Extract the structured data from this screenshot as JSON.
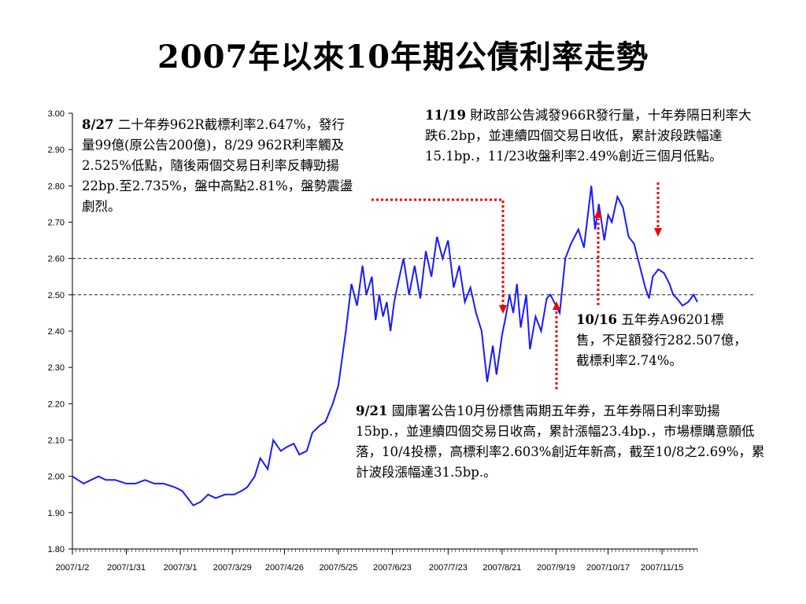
{
  "title": "2007年以來10年期公債利率走勢",
  "colors": {
    "line": "#1a1aff",
    "arrow": "#ee0000",
    "grid": "#000000"
  },
  "annotations": {
    "a827": {
      "date": "8/27",
      "text": " 二十年券962R截標利率2.647%，發行量99億(原公告200億)，8/29 962R利率觸及2.525%低點，隨後兩個交易日利率反轉勁揚22bp.至2.735%，盤中高點2.81%，盤勢震盪劇烈。"
    },
    "a1119": {
      "date": "11/19",
      "text": " 財政部公告減發966R發行量，十年券隔日利率大跌6.2bp，並連續四個交易日收低，累計波段跌幅達15.1bp.，11/23收盤利率2.49%創近三個月低點。"
    },
    "a1016": {
      "date": "10/16",
      "text": " 五年券A96201標售，不足額發行282.507億，截標利率2.74%。"
    },
    "a921": {
      "date": "9/21",
      "text": " 國庫署公告10月份標售兩期五年券，五年券隔日利率勁揚15bp.，並連續四個交易日收高，累計漲幅23.4bp.，市場標購意願低落，10/4投標，高標利率2.603%創近年新高，截至10/8之2.69%，累計波段漲幅達31.5bp.。"
    }
  },
  "chart_data": {
    "type": "line",
    "title": "2007年以來10年期公債利率走勢",
    "xlabel": "",
    "ylabel": "",
    "ylim": [
      1.8,
      3.0
    ],
    "yticks": [
      "3.00",
      "2.90",
      "2.80",
      "2.70",
      "2.60",
      "2.50",
      "2.40",
      "2.30",
      "2.20",
      "2.10",
      "2.00",
      "1.90",
      "1.80"
    ],
    "xlim": [
      "2007-01-02",
      "2007-12-04"
    ],
    "xticks": [
      "2007/1/2",
      "2007/1/31",
      "2007/3/1",
      "2007/3/29",
      "2007/4/26",
      "2007/5/25",
      "2007/6/23",
      "2007/7/23",
      "2007/8/21",
      "2007/9/19",
      "2007/10/17",
      "2007/11/15"
    ],
    "reference_lines": [
      2.6,
      2.5
    ],
    "series": [
      {
        "x": [
          "2007-01-02",
          "2007-01-05",
          "2007-01-08",
          "2007-01-12",
          "2007-01-16",
          "2007-01-20",
          "2007-01-25",
          "2007-01-31",
          "2007-02-05",
          "2007-02-10",
          "2007-02-15",
          "2007-02-20",
          "2007-02-26",
          "2007-03-02",
          "2007-03-05",
          "2007-03-08",
          "2007-03-12",
          "2007-03-16",
          "2007-03-20",
          "2007-03-25",
          "2007-03-30",
          "2007-04-03",
          "2007-04-06",
          "2007-04-10",
          "2007-04-13",
          "2007-04-17",
          "2007-04-20",
          "2007-04-24",
          "2007-04-27",
          "2007-05-01",
          "2007-05-04",
          "2007-05-08",
          "2007-05-11",
          "2007-05-15",
          "2007-05-18",
          "2007-05-22",
          "2007-05-25",
          "2007-05-29",
          "2007-06-01",
          "2007-06-04",
          "2007-06-07",
          "2007-06-09",
          "2007-06-12",
          "2007-06-14",
          "2007-06-16",
          "2007-06-18",
          "2007-06-20",
          "2007-06-22",
          "2007-06-24",
          "2007-06-26",
          "2007-06-29",
          "2007-07-02",
          "2007-07-05",
          "2007-07-08",
          "2007-07-11",
          "2007-07-14",
          "2007-07-17",
          "2007-07-20",
          "2007-07-23",
          "2007-07-26",
          "2007-07-29",
          "2007-08-01",
          "2007-08-04",
          "2007-08-07",
          "2007-08-10",
          "2007-08-13",
          "2007-08-16",
          "2007-08-18",
          "2007-08-21",
          "2007-08-23",
          "2007-08-25",
          "2007-08-27",
          "2007-08-29",
          "2007-08-31",
          "2007-09-03",
          "2007-09-05",
          "2007-09-08",
          "2007-09-11",
          "2007-09-14",
          "2007-09-16",
          "2007-09-18",
          "2007-09-21",
          "2007-09-24",
          "2007-09-27",
          "2007-10-01",
          "2007-10-04",
          "2007-10-08",
          "2007-10-10",
          "2007-10-12",
          "2007-10-15",
          "2007-10-17",
          "2007-10-19",
          "2007-10-22",
          "2007-10-25",
          "2007-10-28",
          "2007-10-31",
          "2007-11-03",
          "2007-11-06",
          "2007-11-08",
          "2007-11-10",
          "2007-11-13",
          "2007-11-16",
          "2007-11-19",
          "2007-11-21",
          "2007-11-23",
          "2007-11-26",
          "2007-11-29",
          "2007-12-02",
          "2007-12-04"
        ],
        "values": [
          2.0,
          1.99,
          1.98,
          1.99,
          2.0,
          1.99,
          1.99,
          1.98,
          1.98,
          1.99,
          1.98,
          1.98,
          1.97,
          1.96,
          1.94,
          1.92,
          1.93,
          1.95,
          1.94,
          1.95,
          1.95,
          1.96,
          1.97,
          2.0,
          2.05,
          2.02,
          2.1,
          2.07,
          2.08,
          2.09,
          2.06,
          2.07,
          2.12,
          2.14,
          2.15,
          2.2,
          2.25,
          2.4,
          2.53,
          2.47,
          2.58,
          2.5,
          2.55,
          2.43,
          2.5,
          2.44,
          2.48,
          2.4,
          2.48,
          2.53,
          2.6,
          2.5,
          2.58,
          2.49,
          2.62,
          2.55,
          2.66,
          2.6,
          2.65,
          2.52,
          2.58,
          2.48,
          2.52,
          2.45,
          2.4,
          2.26,
          2.36,
          2.28,
          2.39,
          2.44,
          2.5,
          2.45,
          2.53,
          2.41,
          2.5,
          2.35,
          2.44,
          2.4,
          2.49,
          2.5,
          2.48,
          2.45,
          2.6,
          2.64,
          2.68,
          2.63,
          2.8,
          2.68,
          2.75,
          2.65,
          2.72,
          2.7,
          2.77,
          2.74,
          2.66,
          2.64,
          2.58,
          2.52,
          2.49,
          2.55,
          2.57,
          2.56,
          2.53,
          2.5,
          2.49,
          2.47,
          2.48,
          2.5,
          2.48
        ]
      }
    ]
  }
}
